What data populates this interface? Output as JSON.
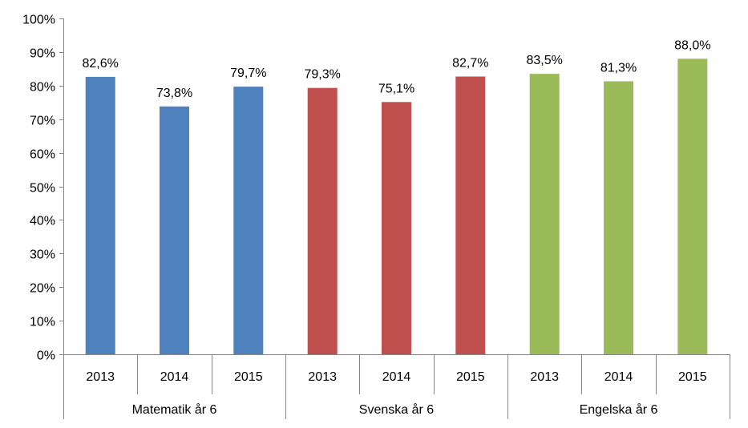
{
  "chart_data": {
    "type": "bar",
    "title": "",
    "xlabel": "",
    "ylabel": "",
    "ylim": [
      0,
      100
    ],
    "y_ticks": [
      0,
      10,
      20,
      30,
      40,
      50,
      60,
      70,
      80,
      90,
      100
    ],
    "y_tick_suffix": "%",
    "grid": false,
    "groups": [
      {
        "name": "Matematik år 6",
        "color": "#4F81BD",
        "categories": [
          "2013",
          "2014",
          "2015"
        ],
        "values": [
          82.6,
          73.8,
          79.7
        ],
        "labels": [
          "82,6%",
          "73,8%",
          "79,7%"
        ]
      },
      {
        "name": "Svenska år 6",
        "color": "#C0504D",
        "categories": [
          "2013",
          "2014",
          "2015"
        ],
        "values": [
          79.3,
          75.1,
          82.7
        ],
        "labels": [
          "79,3%",
          "75,1%",
          "82,7%"
        ]
      },
      {
        "name": "Engelska år 6",
        "color": "#9BBB59",
        "categories": [
          "2013",
          "2014",
          "2015"
        ],
        "values": [
          83.5,
          81.3,
          88.0
        ],
        "labels": [
          "83,5%",
          "81,3%",
          "88,0%"
        ]
      }
    ]
  }
}
